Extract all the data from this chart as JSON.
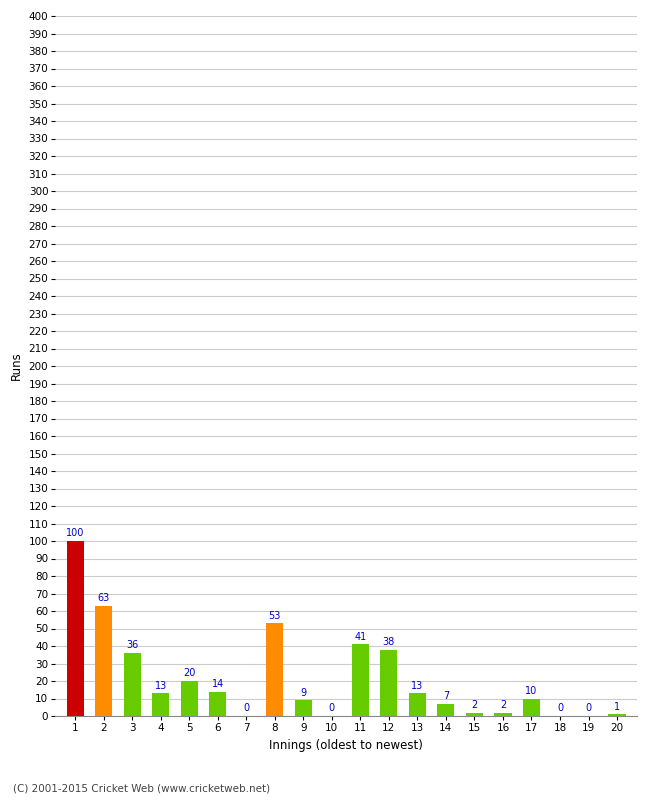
{
  "innings": [
    1,
    2,
    3,
    4,
    5,
    6,
    7,
    8,
    9,
    10,
    11,
    12,
    13,
    14,
    15,
    16,
    17,
    18,
    19,
    20
  ],
  "values": [
    100,
    63,
    36,
    13,
    20,
    14,
    0,
    53,
    9,
    0,
    41,
    38,
    13,
    7,
    2,
    2,
    10,
    0,
    0,
    1
  ],
  "bar_colors": [
    "#cc0000",
    "#ff8c00",
    "#66cc00",
    "#66cc00",
    "#66cc00",
    "#66cc00",
    "#66cc00",
    "#ff8c00",
    "#66cc00",
    "#66cc00",
    "#66cc00",
    "#66cc00",
    "#66cc00",
    "#66cc00",
    "#66cc00",
    "#66cc00",
    "#66cc00",
    "#66cc00",
    "#66cc00",
    "#66cc00"
  ],
  "xlabel": "Innings (oldest to newest)",
  "ylabel": "Runs",
  "ylim": [
    0,
    400
  ],
  "ytick_step": 10,
  "background_color": "#ffffff",
  "grid_color": "#cccccc",
  "label_color": "#0000cc",
  "footer": "(C) 2001-2015 Cricket Web (www.cricketweb.net)"
}
